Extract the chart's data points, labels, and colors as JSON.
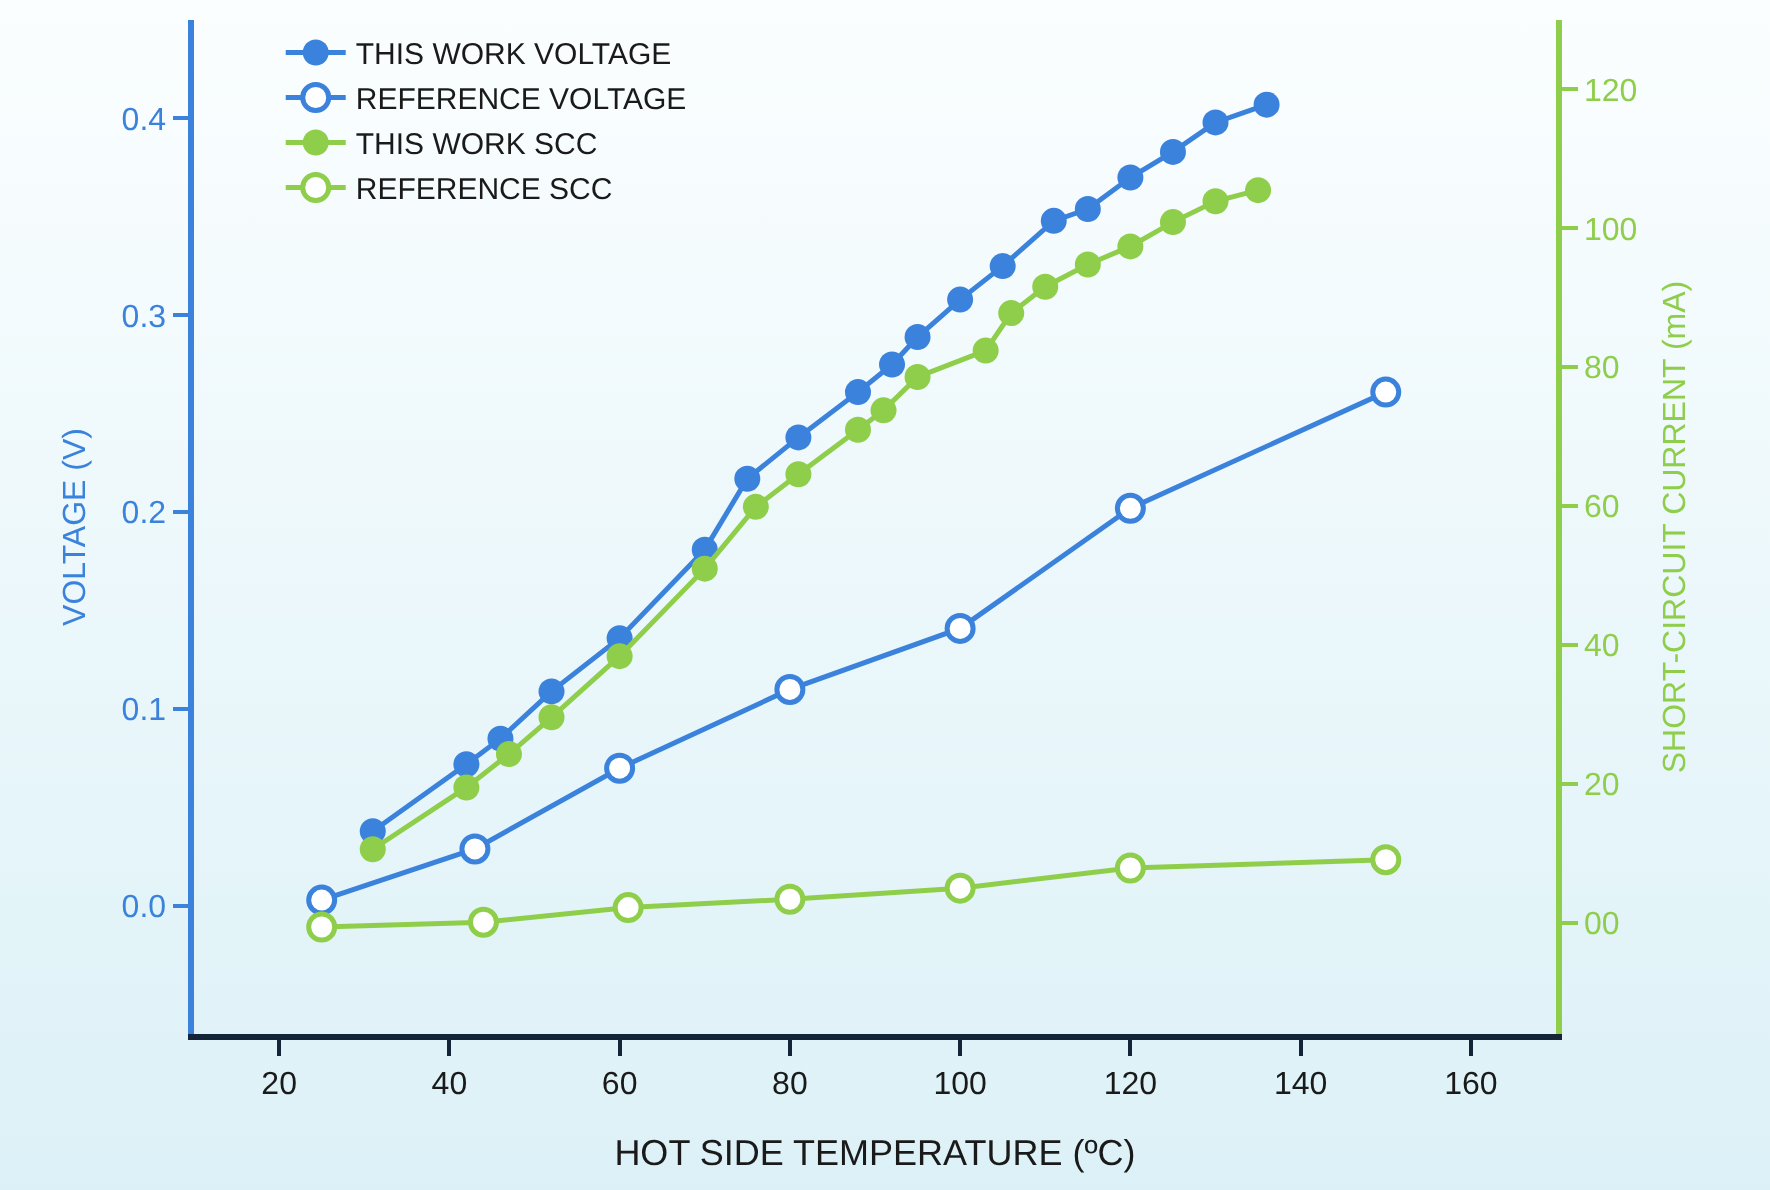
{
  "chart_data": {
    "type": "line",
    "xlabel": "HOT SIDE TEMPERATURE (ºC)",
    "ylabel": "VOLTAGE (V)",
    "y2label": "SHORT-CIRCUIT CURRENT (mA)",
    "xlim": [
      10,
      170
    ],
    "xticks": [
      20,
      40,
      60,
      80,
      100,
      120,
      140,
      160
    ],
    "ylim": [
      -0.065,
      0.45
    ],
    "yticks": [
      {
        "value": 0,
        "label": "0.0"
      },
      0.1,
      0.2,
      0.3,
      0.4
    ],
    "y2lim": [
      -16,
      130
    ],
    "y2ticks": [
      {
        "value": 0,
        "label": "00"
      },
      20,
      40,
      60,
      80,
      100,
      120
    ],
    "grid": false,
    "legend": "top left",
    "line_style": "solid",
    "series": [
      {
        "name": "THIS WORK VOLTAGE",
        "color": "#3a82dc",
        "marker": "circle",
        "x": [
          31,
          42,
          46,
          52,
          60,
          70,
          75,
          81,
          88,
          92,
          95,
          100,
          105,
          111,
          115,
          120,
          125,
          130,
          136
        ],
        "values": [
          0.038,
          0.072,
          0.085,
          0.109,
          0.136,
          0.181,
          0.217,
          0.238,
          0.261,
          0.275,
          0.289,
          0.308,
          0.325,
          0.348,
          0.354,
          0.37,
          0.383,
          0.398,
          0.407
        ]
      },
      {
        "name": "REFERENCE VOLTAGE",
        "color": "#3a82dc",
        "marker": "circle-open",
        "x": [
          25,
          43,
          60,
          80,
          100,
          120,
          150
        ],
        "values": [
          0.003,
          0.029,
          0.07,
          0.11,
          0.141,
          0.202,
          0.261
        ]
      },
      {
        "name": "THIS WORK SCC",
        "color": "#8fce4a",
        "marker": "circle",
        "axis": "y2",
        "x": [
          31,
          42,
          47,
          52,
          60,
          70,
          76,
          81,
          88,
          91,
          95,
          103,
          106,
          110,
          115,
          120,
          125,
          130,
          135
        ],
        "values": [
          10.6,
          19.5,
          24.3,
          29.6,
          38.4,
          51.0,
          59.9,
          64.6,
          71.0,
          73.8,
          78.6,
          82.4,
          87.8,
          91.6,
          94.8,
          97.4,
          100.9,
          103.9,
          105.5
        ]
      },
      {
        "name": "REFERENCE SCC",
        "color": "#8fce4a",
        "marker": "circle-open",
        "axis": "y2",
        "x": [
          25,
          44,
          61,
          80,
          100,
          120,
          150
        ],
        "values": [
          -0.6,
          0.1,
          2.2,
          3.4,
          5.0,
          7.9,
          9.1
        ]
      }
    ]
  }
}
